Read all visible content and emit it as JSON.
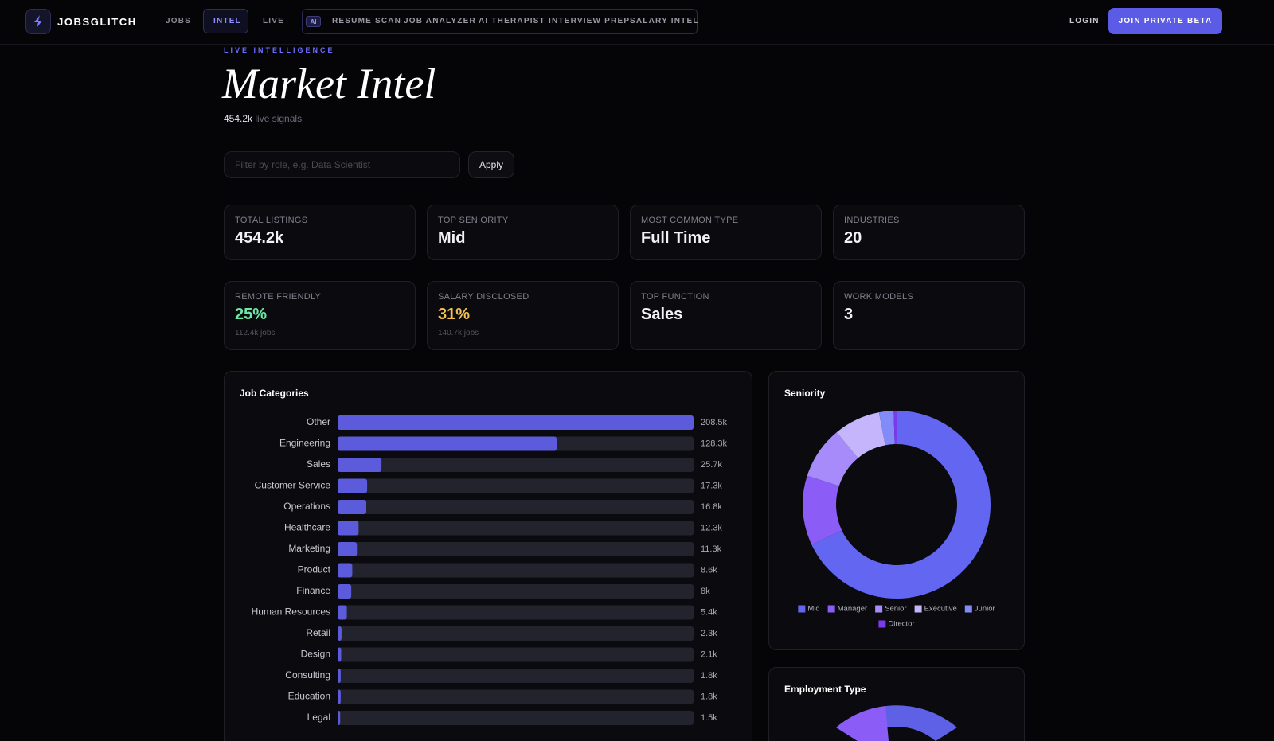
{
  "brand": "JOBSGLITCH",
  "nav": {
    "items": [
      "JOBS",
      "INTEL",
      "LIVE"
    ],
    "ai_badge": "AI",
    "ai_tools": [
      "RESUME SCAN",
      "JOB ANALYZER",
      "AI THERAPIST",
      "INTERVIEW PREP",
      "SALARY INTEL"
    ],
    "login": "LOGIN",
    "cta": "JOIN PRIVATE BETA"
  },
  "header": {
    "eyebrow": "LIVE INTELLIGENCE",
    "title": "Market Intel",
    "signals_count": "454.2k",
    "signals_text": "live signals"
  },
  "filter": {
    "placeholder": "Filter by role, e.g. Data Scientist",
    "button": "Apply"
  },
  "stats": [
    {
      "label": "TOTAL LISTINGS",
      "value": "454.2k"
    },
    {
      "label": "TOP SENIORITY",
      "value": "Mid"
    },
    {
      "label": "MOST COMMON TYPE",
      "value": "Full Time"
    },
    {
      "label": "INDUSTRIES",
      "value": "20"
    },
    {
      "label": "REMOTE FRIENDLY",
      "value": "25%",
      "sub": "112.4k jobs"
    },
    {
      "label": "SALARY DISCLOSED",
      "value": "31%",
      "sub": "140.7k jobs"
    },
    {
      "label": "TOP FUNCTION",
      "value": "Sales"
    },
    {
      "label": "WORK MODELS",
      "value": "3"
    }
  ],
  "chart_data": [
    {
      "type": "bar",
      "orientation": "horizontal",
      "title": "Job Categories",
      "color": "#5b5bdc",
      "track_color": "#23232e",
      "categories": [
        "Other",
        "Engineering",
        "Sales",
        "Customer Service",
        "Operations",
        "Healthcare",
        "Marketing",
        "Product",
        "Finance",
        "Human Resources",
        "Retail",
        "Design",
        "Consulting",
        "Education",
        "Legal"
      ],
      "values": [
        208500,
        128300,
        25700,
        17300,
        16800,
        12300,
        11300,
        8600,
        8000,
        5400,
        2300,
        2100,
        1800,
        1800,
        1500
      ],
      "value_labels": [
        "208.5k",
        "128.3k",
        "25.7k",
        "17.3k",
        "16.8k",
        "12.3k",
        "11.3k",
        "8.6k",
        "8k",
        "5.4k",
        "2.3k",
        "2.1k",
        "1.8k",
        "1.8k",
        "1.5k"
      ]
    },
    {
      "type": "pie",
      "donut": true,
      "title": "Seniority",
      "categories": [
        "Mid",
        "Manager",
        "Senior",
        "Executive",
        "Junior",
        "Director"
      ],
      "values": [
        68,
        12,
        9,
        8,
        2.5,
        0.5
      ],
      "colors": [
        "#6366f1",
        "#8b5cf6",
        "#a78bfa",
        "#c4b5fd",
        "#818cf8",
        "#7c3aed"
      ],
      "legend": "bottom"
    }
  ],
  "employment_panel": {
    "title": "Employment Type"
  }
}
